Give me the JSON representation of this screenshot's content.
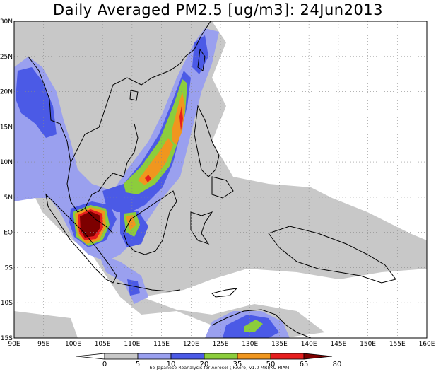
{
  "title": "Daily Averaged PM2.5 [ug/m3]: 24Jun2013",
  "map": {
    "lon_range": [
      90,
      160
    ],
    "lat_range": [
      -15,
      30
    ],
    "grid": true,
    "lon_ticks": [
      "90E",
      "95E",
      "100E",
      "105E",
      "110E",
      "115E",
      "120E",
      "125E",
      "130E",
      "135E",
      "140E",
      "145E",
      "150E",
      "155E",
      "160E"
    ],
    "lat_ticks": [
      "30N",
      "25N",
      "20N",
      "15N",
      "10N",
      "5N",
      "EQ",
      "5S",
      "10S",
      "15S"
    ]
  },
  "colorbar": {
    "levels": [
      "0",
      "5",
      "10",
      "20",
      "35",
      "50",
      "65",
      "80"
    ],
    "colors": [
      "#ffffff",
      "#c8c8c8",
      "#9aa0ef",
      "#4b5ae6",
      "#8ccd3c",
      "#f0961e",
      "#e61e1e",
      "#7d0000"
    ],
    "credit": "The Japanese Reanalysis for Aerosol (JRAero) v1.0 MRI/KU RIAM"
  }
}
